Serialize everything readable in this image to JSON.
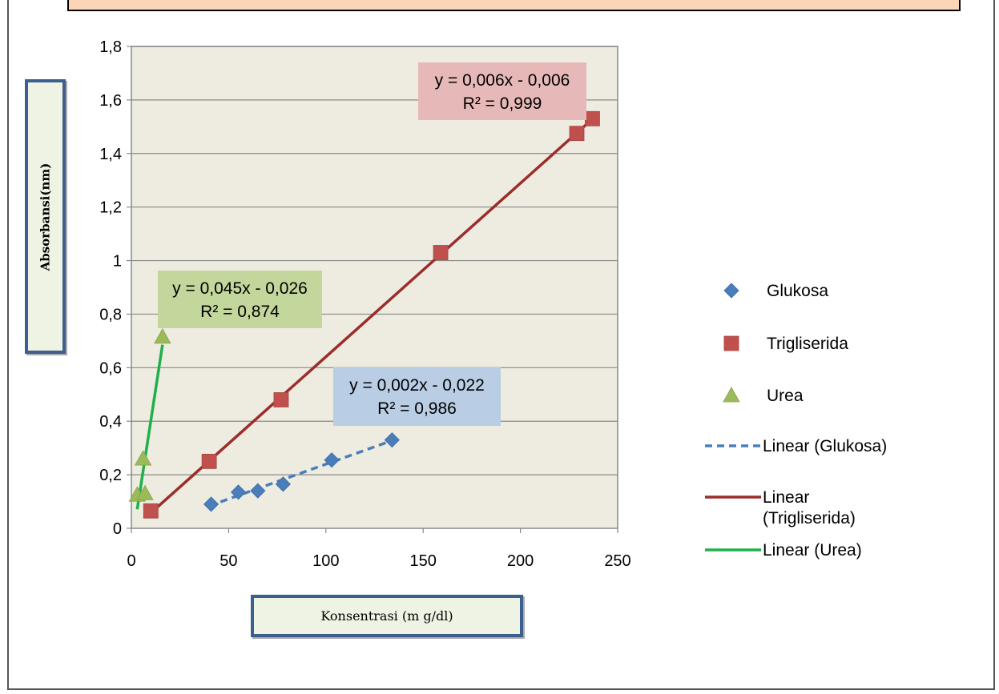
{
  "chart_data": {
    "type": "scatter",
    "xlabel": "Konsentrasi (m g/dl)",
    "ylabel": "Absorbansi(nm)",
    "xlim": [
      0,
      250
    ],
    "ylim": [
      0,
      1.8
    ],
    "x_ticks": [
      "0",
      "50",
      "100",
      "150",
      "200",
      "250"
    ],
    "y_ticks": [
      "0",
      "0,2",
      "0,4",
      "0,6",
      "0,8",
      "1",
      "1,2",
      "1,4",
      "1,6",
      "1,8"
    ],
    "grid": "horizontal",
    "legend_position": "right",
    "series": [
      {
        "name": "Glukosa",
        "marker": "diamond",
        "color": "#4a7ebb",
        "points": [
          [
            41,
            0.09
          ],
          [
            55,
            0.135
          ],
          [
            65,
            0.14
          ],
          [
            78,
            0.165
          ],
          [
            103,
            0.255
          ],
          [
            134,
            0.33
          ]
        ],
        "trendline": {
          "name": "Linear (Glukosa)",
          "style": "dashed",
          "color": "#4a7ebb",
          "x": [
            40,
            138
          ],
          "equation": "y = 0,002x - 0,022",
          "r2": "R² = 0,986",
          "box_color": "#b9cde5"
        }
      },
      {
        "name": "Trigliserida",
        "marker": "square",
        "color": "#c0504d",
        "points": [
          [
            10,
            0.065
          ],
          [
            40,
            0.25
          ],
          [
            77,
            0.48
          ],
          [
            159,
            1.03
          ],
          [
            229,
            1.475
          ],
          [
            237,
            1.53
          ]
        ],
        "trendline": {
          "name": "Linear (Trigliserida)",
          "style": "solid",
          "color": "#9b2d2a",
          "x": [
            9,
            238
          ],
          "equation": "y = 0,006x - 0,006",
          "r2": "R² = 0,999",
          "box_color": "#e6b9b8"
        }
      },
      {
        "name": "Urea",
        "marker": "triangle",
        "color": "#9bbb59",
        "points": [
          [
            3,
            0.125
          ],
          [
            6,
            0.26
          ],
          [
            7,
            0.13
          ],
          [
            16,
            0.715
          ]
        ],
        "trendline": {
          "name": "Linear (Urea)",
          "style": "solid",
          "color": "#1fb04a",
          "x": [
            3,
            16
          ],
          "equation": "y = 0,045x - 0,026",
          "r2": "R² = 0,874",
          "box_color": "#c3d69b"
        }
      }
    ],
    "legend": [
      {
        "label": "Glukosa",
        "kind": "marker",
        "series": 0
      },
      {
        "label": "Trigliserida",
        "kind": "marker",
        "series": 1
      },
      {
        "label": "Urea",
        "kind": "marker",
        "series": 2
      },
      {
        "label": "Linear (Glukosa)",
        "kind": "line",
        "series": 0
      },
      {
        "label": "Linear (Trigliserida)",
        "kind": "line",
        "series": 1
      },
      {
        "label": "Linear (Urea)",
        "kind": "line",
        "series": 2
      }
    ]
  }
}
